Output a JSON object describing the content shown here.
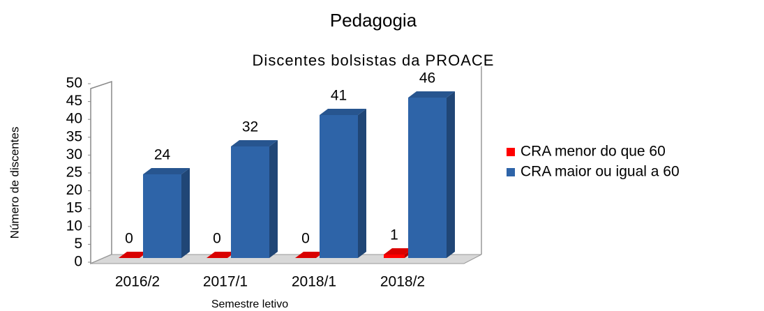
{
  "chart_data": {
    "type": "bar3d",
    "title": "Pedagogia",
    "subtitle": "Discentes bolsistas da PROACE",
    "x_label": "Semestre letivo",
    "y_label": "Número de discentes",
    "categories": [
      "2016/2",
      "2017/1",
      "2018/1",
      "2018/2"
    ],
    "series": [
      {
        "name": "CRA menor do que 60",
        "color": "#ff0000",
        "values": [
          0,
          0,
          0,
          1
        ]
      },
      {
        "name": "CRA maior ou igual a 60",
        "color": "#2e64a8",
        "values": [
          24,
          32,
          41,
          46
        ]
      }
    ],
    "ylim": [
      0,
      50
    ],
    "yticks": [
      0,
      5,
      10,
      15,
      20,
      25,
      30,
      35,
      40,
      45,
      50
    ],
    "legend": "right"
  }
}
